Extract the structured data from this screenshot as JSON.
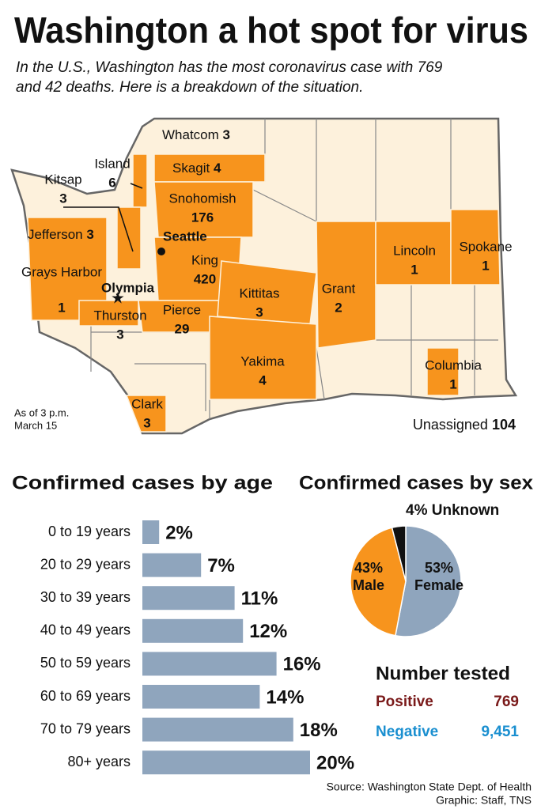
{
  "title": "Washington a hot spot for virus",
  "subtitle": [
    "In the U.S., Washington has the most coronavirus case with 769",
    "and 42 deaths. Here is a breakdown of the situation."
  ],
  "map": {
    "counties": [
      {
        "name": "Whatcom",
        "cases": "3"
      },
      {
        "name": "Skagit",
        "cases": "4"
      },
      {
        "name": "Island",
        "cases": "6"
      },
      {
        "name": "Kitsap",
        "cases": "3"
      },
      {
        "name": "Snohomish",
        "cases": "176"
      },
      {
        "name": "Jefferson",
        "cases": "3"
      },
      {
        "name": "King",
        "cases": "420"
      },
      {
        "name": "Grays Harbor",
        "cases": "1"
      },
      {
        "name": "Thurston",
        "cases": "3"
      },
      {
        "name": "Pierce",
        "cases": "29"
      },
      {
        "name": "Kittitas",
        "cases": "3"
      },
      {
        "name": "Yakima",
        "cases": "4"
      },
      {
        "name": "Clark",
        "cases": "3"
      },
      {
        "name": "Lincoln",
        "cases": "1"
      },
      {
        "name": "Spokane",
        "cases": "1"
      },
      {
        "name": "Grant",
        "cases": "2"
      },
      {
        "name": "Columbia",
        "cases": "1"
      }
    ],
    "cities": [
      "Seattle",
      "Olympia"
    ],
    "note": [
      "As of 3 p.m.",
      "March 15"
    ],
    "unassigned": {
      "label": "Unassigned",
      "cases": "104"
    }
  },
  "chart_data": [
    {
      "type": "bar",
      "title": "Confirmed cases by age",
      "categories": [
        "0 to 19 years",
        "20 to 29 years",
        "30 to 39 years",
        "40 to 49 years",
        "50 to 59 years",
        "60 to 69 years",
        "70 to 79 years",
        "80+ years"
      ],
      "values": [
        2,
        7,
        11,
        12,
        16,
        14,
        18,
        20
      ],
      "value_labels": [
        "2%",
        "7%",
        "11%",
        "12%",
        "16%",
        "14%",
        "18%",
        "20%"
      ],
      "color": "#8fa5bd"
    },
    {
      "type": "pie",
      "title": "Confirmed cases by sex",
      "series": [
        {
          "name": "Female",
          "color": "#8fa5bd",
          "values": [
            53
          ],
          "value_labels": [
            "53%"
          ]
        },
        {
          "name": "Male",
          "color": "#f7941d",
          "values": [
            43
          ],
          "value_labels": [
            "43%"
          ]
        },
        {
          "name": "Unknown",
          "color": "#111111",
          "values": [
            4
          ],
          "value_labels": [
            "4%"
          ]
        }
      ]
    }
  ],
  "tested": {
    "title": "Number tested",
    "rows": [
      {
        "label": "Positive",
        "value": "769"
      },
      {
        "label": "Negative",
        "value": "9,451"
      }
    ]
  },
  "source": [
    "Source: Washington State Dept. of Health",
    "Graphic: Staff, TNS"
  ]
}
